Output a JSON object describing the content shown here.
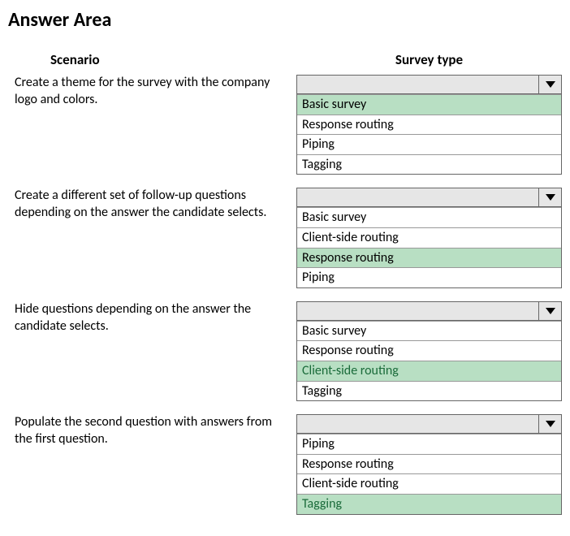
{
  "title": "Answer Area",
  "headers": {
    "scenario": "Scenario",
    "survey_type": "Survey type"
  },
  "colors": {
    "highlight_bg": "#b8dfc3",
    "highlight_text": "#1a6b3a",
    "dropdown_head_bg": "#e6e6e6",
    "border": "#666666"
  },
  "rows": [
    {
      "scenario": "Create a theme for the survey with the company logo and colors.",
      "options": [
        {
          "label": "Basic survey",
          "highlighted": true,
          "green_text": false
        },
        {
          "label": "Response routing",
          "highlighted": false,
          "green_text": false
        },
        {
          "label": "Piping",
          "highlighted": false,
          "green_text": false
        },
        {
          "label": "Tagging",
          "highlighted": false,
          "green_text": false
        }
      ]
    },
    {
      "scenario": "Create a different set of follow-up questions depending on the answer the candidate selects.",
      "options": [
        {
          "label": "Basic survey",
          "highlighted": false,
          "green_text": false
        },
        {
          "label": "Client-side routing",
          "highlighted": false,
          "green_text": false
        },
        {
          "label": "Response routing",
          "highlighted": true,
          "green_text": false
        },
        {
          "label": "Piping",
          "highlighted": false,
          "green_text": false
        }
      ]
    },
    {
      "scenario": "Hide questions depending on the answer the candidate selects.",
      "options": [
        {
          "label": "Basic survey",
          "highlighted": false,
          "green_text": false
        },
        {
          "label": "Response routing",
          "highlighted": false,
          "green_text": false
        },
        {
          "label": "Client-side routing",
          "highlighted": true,
          "green_text": true
        },
        {
          "label": "Tagging",
          "highlighted": false,
          "green_text": false
        }
      ]
    },
    {
      "scenario": "Populate the second question with answers from the first question.",
      "options": [
        {
          "label": "Piping",
          "highlighted": false,
          "green_text": false
        },
        {
          "label": "Response routing",
          "highlighted": false,
          "green_text": false
        },
        {
          "label": "Client-side routing",
          "highlighted": false,
          "green_text": false
        },
        {
          "label": "Tagging",
          "highlighted": true,
          "green_text": true
        }
      ]
    }
  ]
}
